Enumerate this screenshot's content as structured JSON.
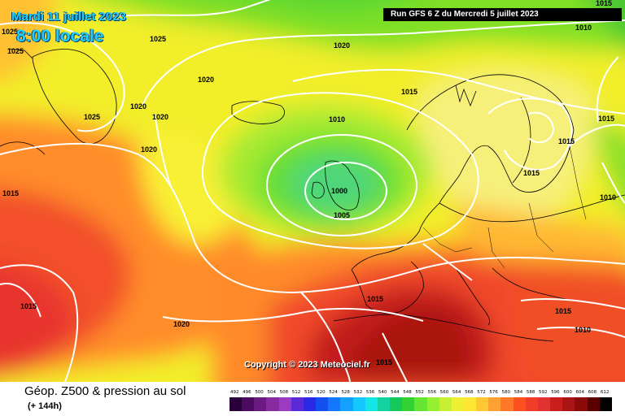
{
  "header": {
    "date": "Mardi 11 juillet 2023",
    "time": "8:00 locale",
    "run": "Run GFS 6 Z du Mercredi 5 juillet 2023"
  },
  "copyright": "Copyright © 2023 Meteociel.fr",
  "footer": {
    "title": "Géop. Z500 & pression au sol",
    "subtitle": "(+ 144h)"
  },
  "scale": {
    "labels": [
      "492",
      "496",
      "500",
      "504",
      "508",
      "512",
      "516",
      "520",
      "524",
      "528",
      "532",
      "536",
      "540",
      "544",
      "548",
      "552",
      "556",
      "560",
      "564",
      "568",
      "572",
      "576",
      "580",
      "584",
      "588",
      "592",
      "596",
      "600",
      "604",
      "608",
      "612"
    ],
    "colors": [
      "#2a003b",
      "#4b0b5e",
      "#6a1a80",
      "#8a2aa3",
      "#9b3bc4",
      "#5a2ad9",
      "#2a2ae6",
      "#1450f0",
      "#1478ff",
      "#14a0ff",
      "#14c8ff",
      "#14e6e6",
      "#14d2a0",
      "#14c85a",
      "#32d232",
      "#64e632",
      "#96f032",
      "#c8f032",
      "#f0f032",
      "#ffe632",
      "#ffc832",
      "#ffa032",
      "#ff7828",
      "#ff5020",
      "#f03c28",
      "#e13232",
      "#c81e1e",
      "#aa1414",
      "#8c0a0a",
      "#5a0000",
      "#000000"
    ]
  },
  "isobars": [
    "1025",
    "1025",
    "1025",
    "1025",
    "1020",
    "1020",
    "1020",
    "1020",
    "1020",
    "1015",
    "1015",
    "1015",
    "1015",
    "1015",
    "1015",
    "1015",
    "1015",
    "1010",
    "1010",
    "1010",
    "1005",
    "1000",
    "1020",
    "1015",
    "1015",
    "1010"
  ]
}
